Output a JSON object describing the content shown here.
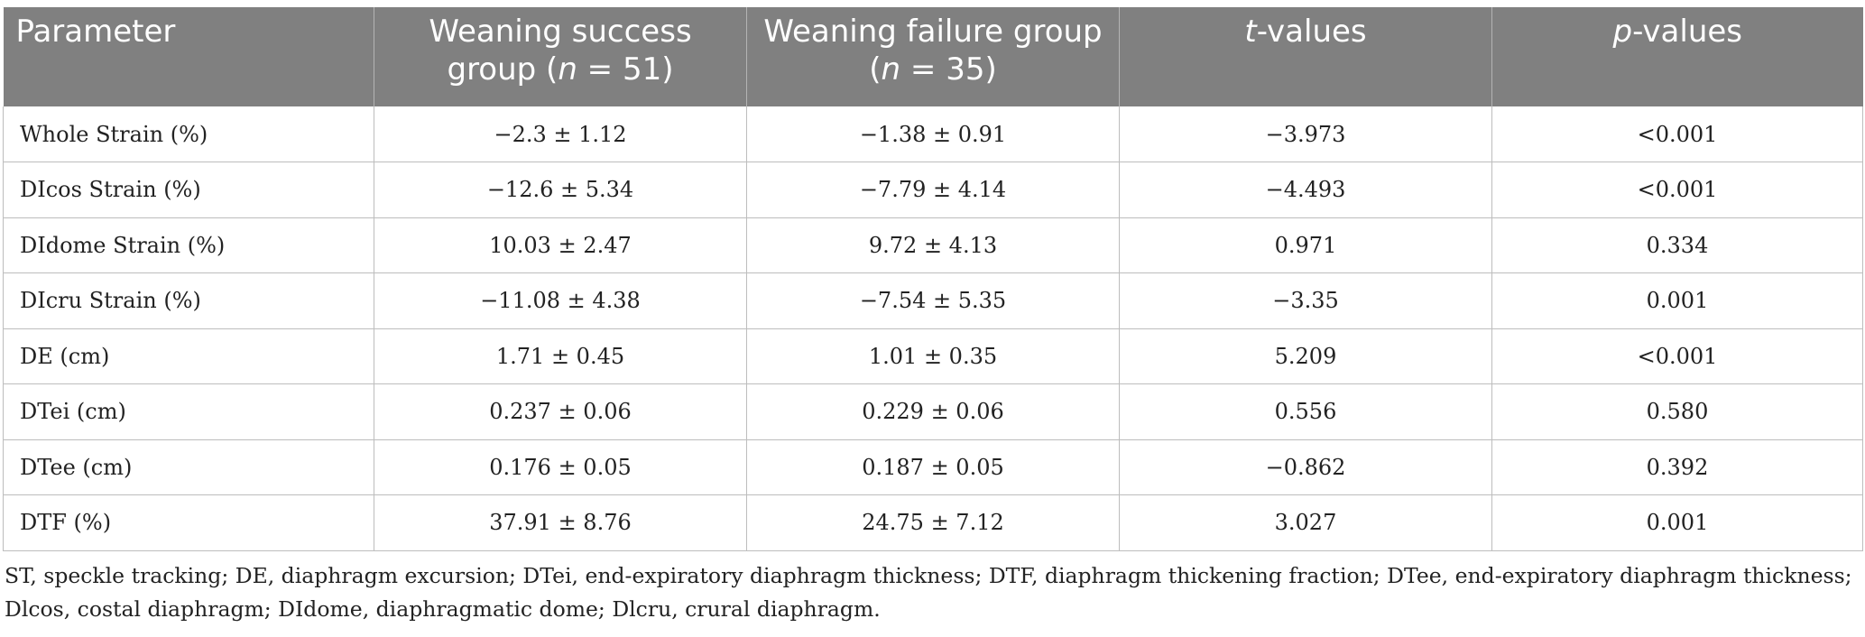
{
  "table": {
    "headers": {
      "parameter": "Parameter",
      "success_text": "Weaning success group (",
      "success_n": "n",
      "success_close": " = 51)",
      "failure_text": "Weaning failure group (",
      "failure_n": "n",
      "failure_close": " = 35)",
      "t_italic": "t",
      "t_rest": "-values",
      "p_italic": "p",
      "p_rest": "-values"
    },
    "rows": [
      {
        "parameter": "Whole Strain (%)",
        "success": "−2.3 ± 1.12",
        "failure": "−1.38 ± 0.91",
        "t": "−3.973",
        "p": "<0.001"
      },
      {
        "parameter": "DIcos Strain (%)",
        "success": "−12.6 ± 5.34",
        "failure": "−7.79 ± 4.14",
        "t": "−4.493",
        "p": "<0.001"
      },
      {
        "parameter": "DIdome Strain (%)",
        "success": "10.03 ± 2.47",
        "failure": "9.72 ± 4.13",
        "t": "0.971",
        "p": "0.334"
      },
      {
        "parameter": "DIcru Strain (%)",
        "success": "−11.08 ± 4.38",
        "failure": "−7.54 ± 5.35",
        "t": "−3.35",
        "p": "0.001"
      },
      {
        "parameter": "DE (cm)",
        "success": "1.71 ± 0.45",
        "failure": "1.01 ± 0.35",
        "t": "5.209",
        "p": "<0.001"
      },
      {
        "parameter": "DTei (cm)",
        "success": "0.237 ± 0.06",
        "failure": "0.229 ± 0.06",
        "t": "0.556",
        "p": "0.580"
      },
      {
        "parameter": "DTee (cm)",
        "success": "0.176 ± 0.05",
        "failure": "0.187 ± 0.05",
        "t": "−0.862",
        "p": "0.392"
      },
      {
        "parameter": "DTF (%)",
        "success": "37.91 ± 8.76",
        "failure": "24.75 ± 7.12",
        "t": "3.027",
        "p": "0.001"
      }
    ]
  },
  "footnote": "ST, speckle tracking; DE, diaphragm excursion; DTei, end-expiratory diaphragm thickness; DTF, diaphragm thickening fraction; DTee, end-expiratory diaphragm thickness; Dlcos, costal diaphragm; DIdome, diaphragmatic dome; Dlcru, crural diaphragm.",
  "colors": {
    "header_background": "#808080",
    "header_text": "#ffffff",
    "grid_lines": "#bdbdbd",
    "body_text": "#222222"
  }
}
